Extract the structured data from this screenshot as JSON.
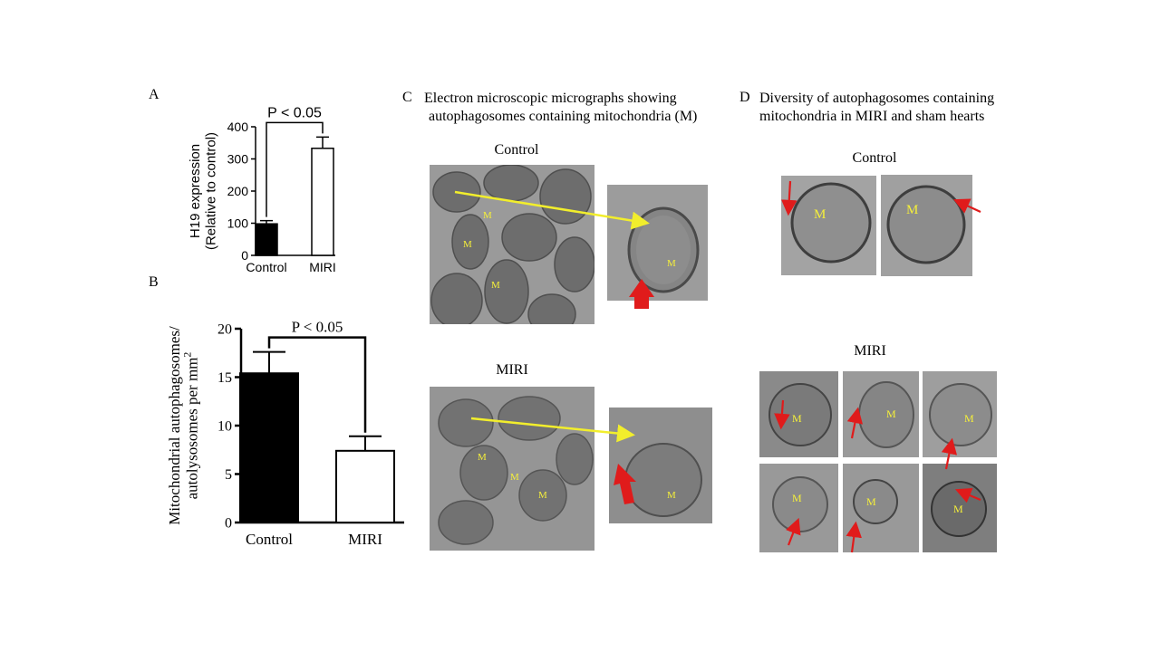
{
  "panels": {
    "A": {
      "letter": "A"
    },
    "B": {
      "letter": "B"
    },
    "C": {
      "letter": "C",
      "title_line1": "Electron microscopic micrographs showing",
      "title_line2": "autophagosomes containing  mitochondria (M)",
      "label_control": "Control",
      "label_miri": "MIRI",
      "m_label": "M"
    },
    "D": {
      "letter": "D",
      "title_line1": "Diversity  of autophagosomes containing",
      "title_line2": "mitochondria  in MIRI and sham hearts",
      "label_control": "Control",
      "label_miri": "MIRI",
      "m_label": "M"
    }
  },
  "colors": {
    "bar_control": "#000000",
    "bar_miri": "#ffffff",
    "arrow_yellow": "#f2ee2c",
    "arrow_red": "#e01b1b",
    "m_label": "#f5ef3a"
  },
  "chart_data": [
    {
      "type": "bar",
      "panel": "A",
      "categories": [
        "Control",
        "MIRI"
      ],
      "values": [
        98,
        333
      ],
      "errors": [
        10,
        35
      ],
      "ylabel_line1": "H19 expression",
      "ylabel_line2": "(Relative to control)",
      "ylim": [
        0,
        400
      ],
      "yticks": [
        "0",
        "100",
        "200",
        "300",
        "400"
      ],
      "annotation": "P < 0.05"
    },
    {
      "type": "bar",
      "panel": "B",
      "categories": [
        "Control",
        "MIRI"
      ],
      "values": [
        15.4,
        7.4
      ],
      "errors": [
        2.2,
        1.5
      ],
      "ylabel_line1": "Mitochondrial autophagosomes/",
      "ylabel_line2": "autolysosomes per mm",
      "ylabel_sup": "2",
      "ylim": [
        0,
        20
      ],
      "yticks": [
        "0",
        "5",
        "10",
        "15",
        "20"
      ],
      "annotation": "P < 0.05"
    }
  ]
}
